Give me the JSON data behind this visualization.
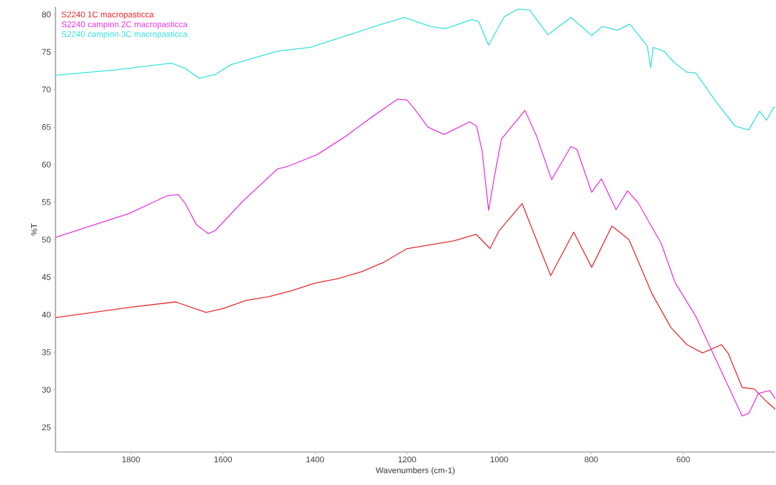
{
  "chart_data": {
    "type": "line",
    "xlabel": "Wavenumbers (cm-1)",
    "ylabel": "%T",
    "xlim": [
      1964,
      400
    ],
    "ylim": [
      21.7,
      81
    ],
    "xticks": [
      1800,
      1600,
      1400,
      1200,
      1000,
      800,
      600
    ],
    "yticks": [
      25,
      30,
      35,
      40,
      45,
      50,
      55,
      60,
      65,
      70,
      75,
      80
    ],
    "grid": false,
    "legend": "top left",
    "series": [
      {
        "name": "S2240 1C macropasticca",
        "color": "#e8262a",
        "x": [
          1964,
          1800,
          1703,
          1637,
          1600,
          1550,
          1500,
          1450,
          1400,
          1350,
          1300,
          1250,
          1200,
          1150,
          1100,
          1050,
          1020,
          1000,
          950,
          916,
          888,
          838,
          799,
          755,
          718,
          668,
          627,
          592,
          558,
          517,
          502,
          472,
          446,
          422,
          400
        ],
        "values": [
          39.6,
          41.0,
          41.7,
          40.3,
          40.8,
          41.9,
          42.4,
          43.2,
          44.2,
          44.8,
          45.7,
          47.0,
          48.8,
          49.3,
          49.8,
          50.7,
          48.8,
          51.2,
          54.8,
          49.5,
          45.2,
          51.0,
          46.3,
          51.8,
          50.0,
          42.8,
          38.3,
          36.0,
          34.9,
          36.0,
          34.8,
          30.3,
          30.1,
          28.6,
          27.4
        ]
      },
      {
        "name": "S2240 campion 2C macropasticca",
        "color": "#e632e6",
        "x": [
          1964,
          1803,
          1723,
          1697,
          1682,
          1658,
          1632,
          1617,
          1557,
          1482,
          1462,
          1396,
          1335,
          1275,
          1221,
          1200,
          1180,
          1155,
          1120,
          1100,
          1064,
          1049,
          1037,
          1023,
          1010,
          995,
          944,
          920,
          886,
          844,
          831,
          799,
          778,
          746,
          721,
          698,
          648,
          618,
          573,
          472,
          457,
          437,
          412,
          400
        ],
        "values": [
          50.3,
          53.5,
          55.8,
          56.0,
          54.8,
          52.0,
          50.8,
          51.2,
          55.1,
          59.4,
          59.7,
          61.3,
          63.7,
          66.4,
          68.7,
          68.6,
          67.1,
          65.0,
          64.0,
          64.6,
          65.7,
          65.1,
          61.8,
          53.9,
          58.5,
          63.4,
          67.2,
          64.0,
          58.0,
          62.4,
          62.0,
          56.3,
          58.1,
          54.0,
          56.5,
          54.9,
          49.5,
          44.3,
          39.8,
          26.5,
          26.9,
          29.5,
          29.9,
          28.8
        ]
      },
      {
        "name": "S2240 campion 3C macropasticca",
        "color": "#33e0e0",
        "x": [
          1964,
          1833,
          1712,
          1682,
          1652,
          1617,
          1583,
          1482,
          1411,
          1335,
          1260,
          1206,
          1150,
          1117,
          1060,
          1045,
          1023,
          989,
          959,
          934,
          894,
          844,
          799,
          776,
          743,
          716,
          678,
          671,
          665,
          642,
          618,
          592,
          573,
          528,
          487,
          458,
          434,
          419,
          404,
          400
        ],
        "values": [
          71.9,
          72.6,
          73.5,
          72.8,
          71.5,
          72.0,
          73.3,
          75.1,
          75.6,
          77.1,
          78.6,
          79.6,
          78.4,
          78.1,
          79.3,
          79.1,
          75.9,
          79.7,
          80.7,
          80.6,
          77.3,
          79.6,
          77.2,
          78.4,
          77.9,
          78.7,
          75.8,
          72.9,
          75.6,
          75.1,
          73.5,
          72.3,
          72.2,
          68.3,
          65.1,
          64.6,
          67.1,
          65.9,
          67.6,
          67.6
        ]
      }
    ]
  }
}
